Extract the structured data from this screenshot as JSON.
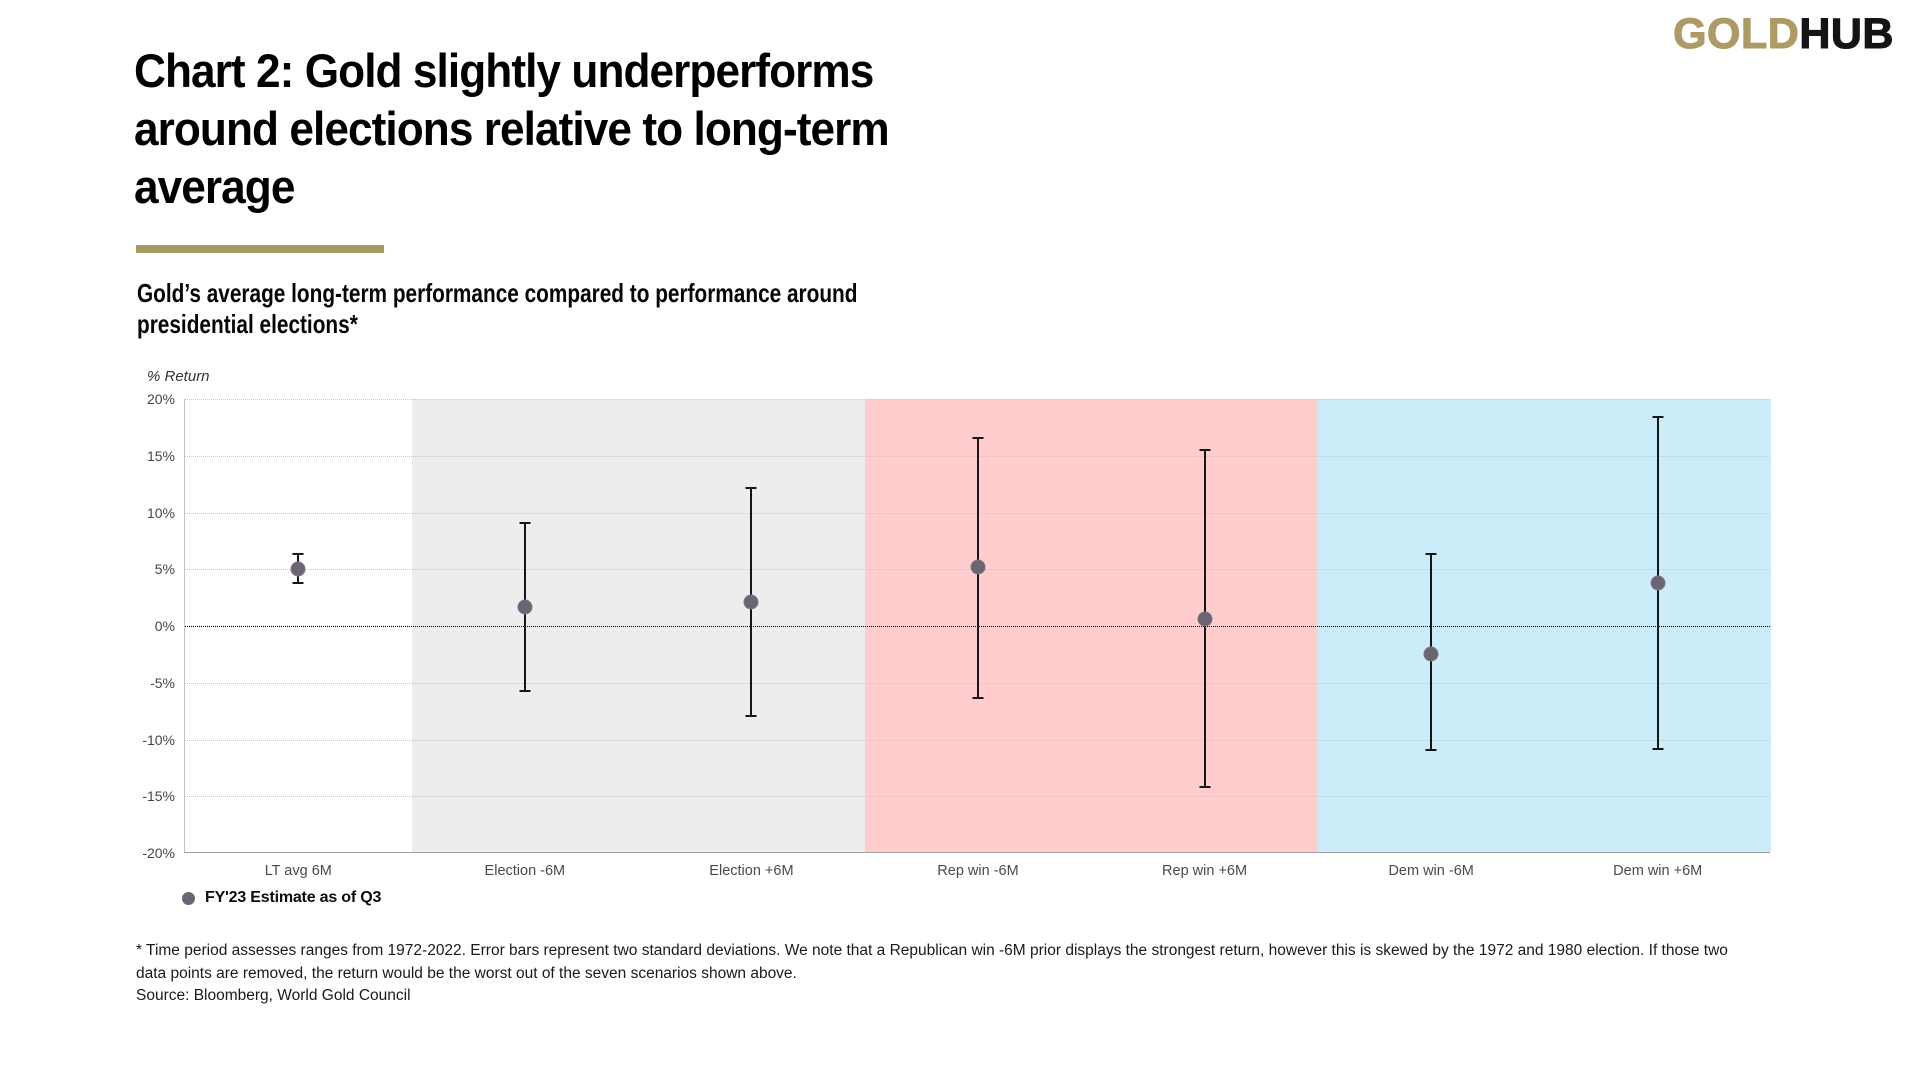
{
  "logo": {
    "gold": "GOLD",
    "black": "HUB"
  },
  "title": {
    "lines": [
      "Chart 2: Gold slightly underperforms",
      "around elections relative to long-term",
      "average"
    ]
  },
  "subtitle": {
    "lines": [
      "Gold’s average long-term performance compared to performance around",
      "presidential elections*"
    ]
  },
  "legend": {
    "label": "FY'23 Estimate as of Q3"
  },
  "footnote": {
    "lines": [
      "* Time period assesses ranges from 1972-2022. Error bars represent two standard deviations. We note that a Republican win -6M prior displays the strongest return, however this is skewed by the 1972 and 1980 election. If those two",
      "data points are removed, the return would be the worst out of the seven scenarios shown above."
    ],
    "source": "Source: Bloomberg, World Gold Council"
  },
  "colors": {
    "gold_accent": "#a69a62",
    "logo_gold": "#ac9b64",
    "marker": "#6b6472",
    "band_gray": "#ededed",
    "band_pink": "#ffcdcd",
    "band_blue": "#cbecf8"
  },
  "chart_data": {
    "type": "scatter",
    "subtype": "error-bars-two-std-dev",
    "title": "Chart 2: Gold slightly underperforms around elections relative to long-term average",
    "subtitle": "Gold’s average long-term performance compared to performance around presidential elections*",
    "xlabel": "",
    "ylabel": "% Return",
    "ylim": [
      -20,
      20
    ],
    "ytick_step": 5,
    "ytick_labels": [
      "20%",
      "15%",
      "10%",
      "5%",
      "0%",
      "-5%",
      "-10%",
      "-15%",
      "-20%"
    ],
    "grid": "horizontal-dotted",
    "zero_line": true,
    "legend_position": "bottom-left",
    "categories": [
      "LT avg 6M",
      "Election -6M",
      "Election +6M",
      "Rep win -6M",
      "Rep win +6M",
      "Dem win -6M",
      "Dem win +6M"
    ],
    "series": [
      {
        "name": "FY'23 Estimate as of Q3",
        "values": [
          5.0,
          1.7,
          2.1,
          5.2,
          0.6,
          -2.5,
          3.8
        ],
        "upper": [
          6.3,
          9.1,
          12.2,
          16.6,
          15.5,
          6.3,
          18.4
        ],
        "lower": [
          3.8,
          -5.7,
          -7.9,
          -6.3,
          -14.2,
          -10.9,
          -10.8
        ]
      }
    ],
    "bands": [
      {
        "categories": [
          "LT avg 6M"
        ],
        "color": "#ffffff"
      },
      {
        "categories": [
          "Election -6M",
          "Election +6M"
        ],
        "color": "#ededed"
      },
      {
        "categories": [
          "Rep win -6M",
          "Rep win +6M"
        ],
        "color": "#ffcdcd"
      },
      {
        "categories": [
          "Dem win -6M",
          "Dem win +6M"
        ],
        "color": "#cbecf8"
      }
    ]
  }
}
